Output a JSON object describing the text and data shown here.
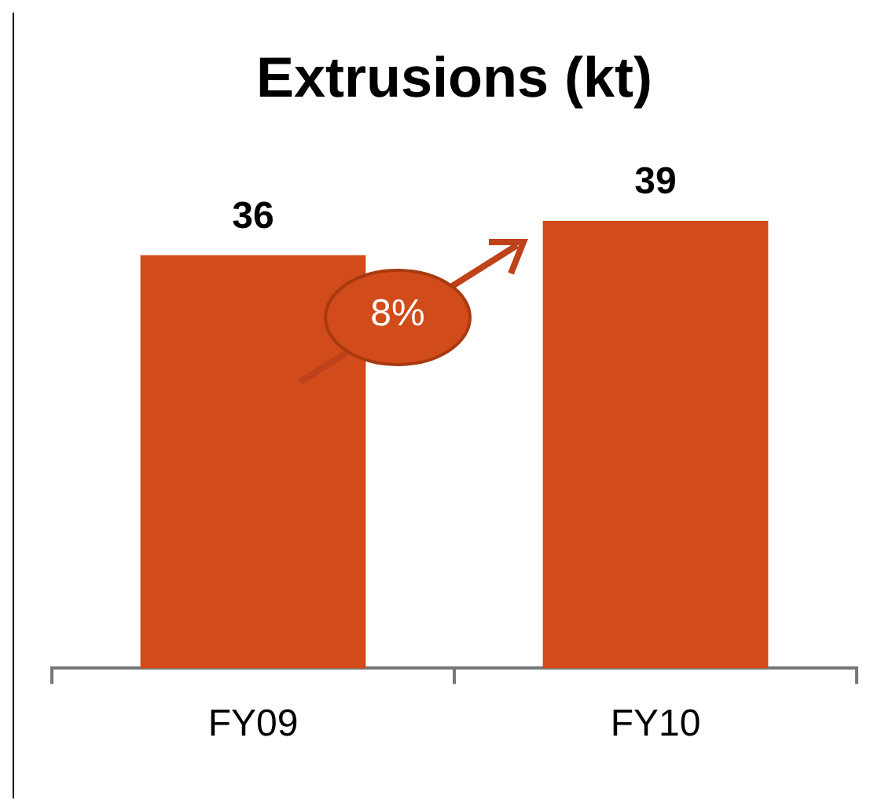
{
  "chart_data": {
    "type": "bar",
    "title": "Extrusions (kt)",
    "categories": [
      "FY09",
      "FY10"
    ],
    "values": [
      36,
      39
    ],
    "color": "#d24b1a",
    "data_labels": true,
    "grid": false,
    "legend": false,
    "annotations": [
      "8%"
    ]
  }
}
